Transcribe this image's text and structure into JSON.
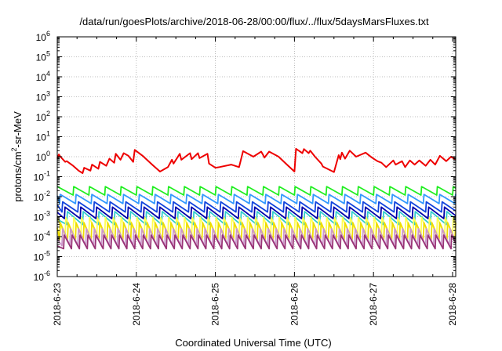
{
  "chart_data": {
    "type": "line",
    "title": "/data/run/goesPlots/archive/2018-06-28/00:00/flux/../flux/5daysMarsFluxes.txt",
    "xlabel": "Coordinated Universal Time (UTC)",
    "ylabel": {
      "base": "protons/cm",
      "sup": "2",
      "rest": "-sr-MeV"
    },
    "yscale": "log",
    "ylim": [
      1e-06,
      1000000.0
    ],
    "yticks": [
      -6,
      -5,
      -4,
      -3,
      -2,
      -1,
      0,
      1,
      2,
      3,
      4,
      5,
      6
    ],
    "x_tick_labels": [
      "2018-6-23",
      "2018-6-24",
      "2018-6-25",
      "2018-6-26",
      "2018-6-27",
      "2018-6-28"
    ],
    "xlim_days": [
      0,
      5.04
    ],
    "grid": true,
    "legend": "none",
    "series": [
      {
        "color": "#ee0000",
        "x": [
          0,
          0.02,
          0.04,
          0.1,
          0.12,
          0.2,
          0.27,
          0.32,
          0.34,
          0.42,
          0.44,
          0.52,
          0.54,
          0.62,
          0.66,
          0.72,
          0.74,
          0.8,
          0.84,
          0.9,
          0.96,
          0.98,
          1.08,
          1.2,
          1.3,
          1.4,
          1.45,
          1.47,
          1.55,
          1.57,
          1.68,
          1.7,
          1.78,
          1.8,
          1.9,
          1.92,
          2.0,
          2.05,
          2.2,
          2.3,
          2.35,
          2.48,
          2.58,
          2.6,
          2.62,
          2.68,
          2.8,
          2.9,
          3.0,
          3.02,
          3.1,
          3.12,
          3.18,
          3.2,
          3.26,
          3.34,
          3.36,
          3.5,
          3.56,
          3.58,
          3.6,
          3.64,
          3.7,
          3.78,
          3.9,
          3.98,
          4.05,
          4.1,
          4.16,
          4.25,
          4.28,
          4.36,
          4.4,
          4.46,
          4.52,
          4.58,
          4.66,
          4.72,
          4.78,
          4.84,
          4.92,
          4.98,
          5.04
        ],
        "y": [
          0.8,
          1.3,
          1.0,
          0.55,
          0.6,
          0.35,
          0.2,
          0.15,
          0.28,
          0.2,
          0.4,
          0.25,
          0.55,
          0.35,
          0.8,
          0.5,
          1.4,
          0.7,
          1.5,
          1.1,
          0.55,
          2.2,
          1.1,
          0.4,
          0.18,
          0.3,
          0.7,
          0.45,
          1.4,
          0.7,
          1.5,
          0.75,
          1.5,
          0.85,
          1.4,
          0.45,
          0.28,
          0.3,
          0.4,
          0.3,
          1.9,
          1.0,
          1.8,
          1.3,
          0.9,
          1.8,
          1.0,
          0.42,
          0.18,
          2.5,
          1.5,
          2.4,
          1.5,
          2.0,
          1.0,
          0.45,
          0.32,
          0.17,
          1.2,
          0.75,
          1.6,
          0.8,
          2.0,
          1.0,
          1.6,
          0.9,
          0.6,
          0.5,
          0.3,
          0.65,
          0.4,
          0.6,
          0.3,
          0.65,
          0.4,
          0.65,
          0.35,
          0.7,
          0.4,
          1.1,
          0.6,
          1.0,
          0.7
        ]
      },
      {
        "color": "#22ee22",
        "sawtooth": {
          "period": 0.2,
          "phase": 0.0,
          "high": 0.032,
          "low": 0.012
        }
      },
      {
        "color": "#3399ff",
        "sawtooth": {
          "period": 0.2,
          "phase": 0.03,
          "high": 0.013,
          "low": 0.0045
        }
      },
      {
        "color": "#1144dd",
        "sawtooth": {
          "period": 0.2,
          "phase": 0.06,
          "high": 0.0055,
          "low": 0.0017
        }
      },
      {
        "color": "#0000aa",
        "sawtooth": {
          "period": 0.2,
          "phase": 0.09,
          "high": 0.003,
          "low": 0.0008
        }
      },
      {
        "color": "#33cccc",
        "sawtooth": {
          "period": 0.2,
          "phase": 0.12,
          "high": 0.0018,
          "low": 0.0004
        }
      },
      {
        "color": "#ffff55",
        "sawtooth": {
          "period": 0.1,
          "phase": 0.0,
          "high": 0.0009,
          "low": 0.00011
        }
      },
      {
        "color": "#eedd00",
        "sawtooth": {
          "period": 0.1,
          "phase": 0.03,
          "high": 0.0005,
          "low": 7e-05
        }
      },
      {
        "color": "#cc99cc",
        "sawtooth": {
          "period": 0.1,
          "phase": 0.06,
          "high": 0.00025,
          "low": 3.5e-05
        }
      },
      {
        "color": "#993377",
        "sawtooth": {
          "period": 0.1,
          "phase": 0.08,
          "high": 0.00012,
          "low": 2.5e-05
        }
      }
    ]
  }
}
